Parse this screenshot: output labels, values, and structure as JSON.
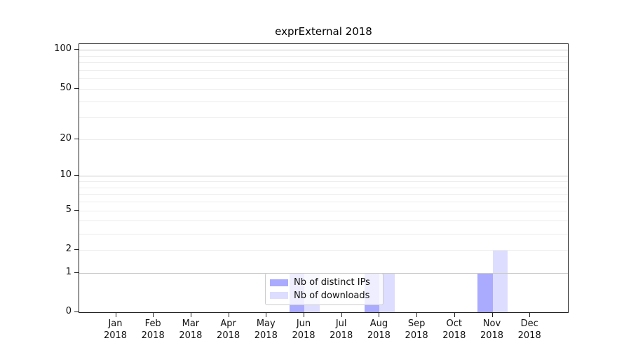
{
  "title": "exprExternal 2018",
  "chart_data": {
    "type": "bar",
    "title": "exprExternal 2018",
    "xlabel": "",
    "ylabel": "",
    "scale": "log1p",
    "grid": true,
    "legend_position": "inside-bottom-center",
    "year": "2018",
    "categories": [
      "Jan",
      "Feb",
      "Mar",
      "Apr",
      "May",
      "Jun",
      "Jul",
      "Aug",
      "Sep",
      "Oct",
      "Nov",
      "Dec"
    ],
    "series": [
      {
        "name": "Nb of distinct IPs",
        "color": "#aaaaff",
        "values": [
          0,
          0,
          0,
          0,
          0,
          1,
          0,
          1,
          0,
          0,
          1,
          0
        ]
      },
      {
        "name": "Nb of downloads",
        "color": "#ddddff",
        "values": [
          0,
          0,
          0,
          0,
          0,
          1,
          0,
          1,
          0,
          0,
          2,
          0
        ]
      }
    ],
    "y_ticks": [
      0,
      1,
      2,
      5,
      10,
      20,
      50,
      100
    ],
    "y_major_gridlines": [
      1,
      10,
      100
    ],
    "y_minor_gridlines": [
      2,
      3,
      4,
      5,
      6,
      7,
      8,
      9,
      20,
      30,
      40,
      50,
      60,
      70,
      80,
      90
    ],
    "ylim": [
      0,
      111
    ]
  },
  "colors": {
    "bar_distinct_ips": "#aaaaff",
    "bar_downloads": "#ddddff",
    "grid_major": "#c9c9c9",
    "grid_minor": "#ececec",
    "axis": "#222222",
    "legend_border": "#cccccc"
  }
}
